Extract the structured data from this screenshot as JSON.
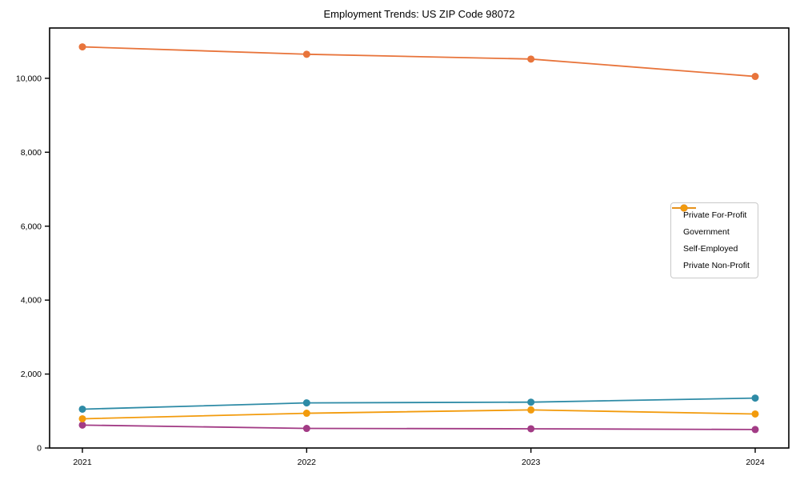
{
  "chart_data": {
    "type": "line",
    "title": "Employment Trends: US ZIP Code 98072",
    "categories": [
      "2021",
      "2022",
      "2023",
      "2024"
    ],
    "series": [
      {
        "name": "Private For-Profit",
        "color": "#E8743B",
        "values": [
          10850,
          10650,
          10520,
          10050
        ]
      },
      {
        "name": "Government",
        "color": "#2E8BA6",
        "values": [
          1050,
          1220,
          1240,
          1350
        ]
      },
      {
        "name": "Self-Employed",
        "color": "#A23B85",
        "values": [
          620,
          530,
          520,
          500
        ]
      },
      {
        "name": "Private Non-Profit",
        "color": "#F29B0D",
        "values": [
          790,
          940,
          1030,
          920
        ]
      }
    ],
    "xlabel": "",
    "ylabel": "",
    "ylim": [
      0,
      11360
    ],
    "y_ticks": [
      0,
      2000,
      4000,
      6000,
      8000,
      10000
    ],
    "y_tick_labels": [
      "0",
      "2,000",
      "4,000",
      "6,000",
      "8,000",
      "10,000"
    ],
    "grid": false,
    "legend_position": "center right",
    "axis_color": "#000000",
    "background_color": "#ffffff"
  }
}
